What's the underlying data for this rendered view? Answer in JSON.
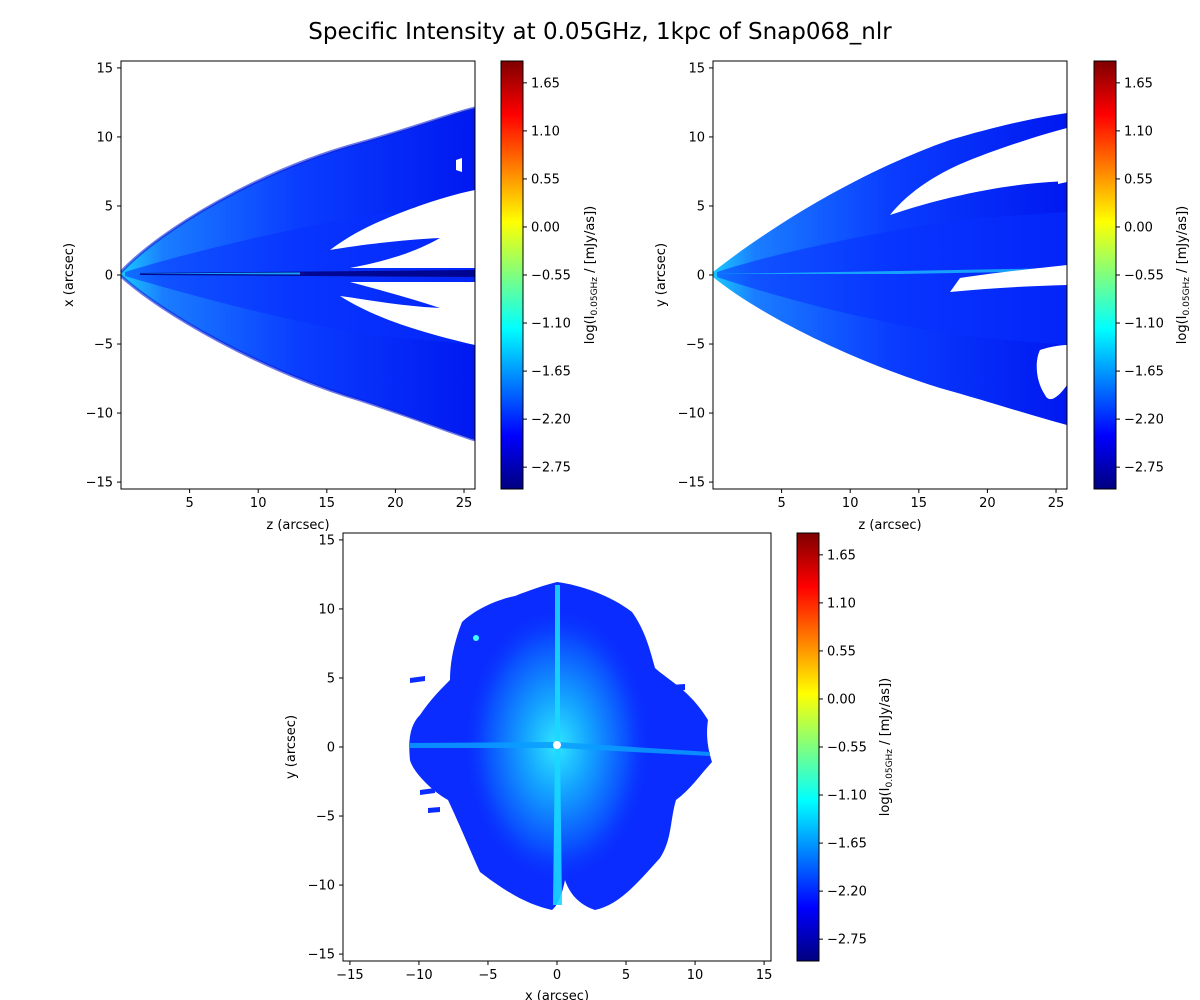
{
  "title": "Specific Intensity at 0.05GHz, 1kpc of Snap068_nlr",
  "colormap": "jet",
  "colormap_stops": [
    "#00007f",
    "#0000ff",
    "#007fff",
    "#00ffff",
    "#7fff7f",
    "#ffff00",
    "#ff7f00",
    "#ff0000",
    "#7f0000"
  ],
  "chart_data": [
    {
      "type": "heatmap",
      "panel": "top-left",
      "xlabel": "z (arcsec)",
      "ylabel": "x (arcsec)",
      "xlim": [
        0,
        25.8
      ],
      "ylim": [
        -15.5,
        15.5
      ],
      "xticks": [
        5,
        10,
        15,
        20,
        25
      ],
      "yticks": [
        -15,
        -10,
        -5,
        0,
        5,
        10,
        15
      ],
      "colorbar": {
        "label_prefix": "log(I",
        "label_sub": "0.05GHz",
        "label_suffix": " / [mJy/as])",
        "range": [
          -3.0,
          1.9
        ],
        "ticks": [
          "-2.75",
          "-2.20",
          "-1.65",
          "-1.10",
          "-0.55",
          "0.00",
          "0.55",
          "1.10",
          "1.65"
        ]
      }
    },
    {
      "type": "heatmap",
      "panel": "top-right",
      "xlabel": "z (arcsec)",
      "ylabel": "y (arcsec)",
      "xlim": [
        0,
        25.8
      ],
      "ylim": [
        -15.5,
        15.5
      ],
      "xticks": [
        5,
        10,
        15,
        20,
        25
      ],
      "yticks": [
        -15,
        -10,
        -5,
        0,
        5,
        10,
        15
      ],
      "colorbar": {
        "label_prefix": "log(I",
        "label_sub": "0.05GHz",
        "label_suffix": " / [mJy/as])",
        "range": [
          -3.0,
          1.9
        ],
        "ticks": [
          "-2.75",
          "-2.20",
          "-1.65",
          "-1.10",
          "-0.55",
          "0.00",
          "0.55",
          "1.10",
          "1.65"
        ]
      }
    },
    {
      "type": "heatmap",
      "panel": "bottom",
      "xlabel": "x (arcsec)",
      "ylabel": "y (arcsec)",
      "xlim": [
        -15.5,
        15.5
      ],
      "ylim": [
        -15.5,
        15.5
      ],
      "xticks": [
        -15,
        -10,
        -5,
        0,
        5,
        10,
        15
      ],
      "yticks": [
        -15,
        -10,
        -5,
        0,
        5,
        10,
        15
      ],
      "colorbar": {
        "label_prefix": "log(I",
        "label_sub": "0.05GHz",
        "label_suffix": " / [mJy/as])",
        "range": [
          -3.0,
          1.9
        ],
        "ticks": [
          "-2.75",
          "-2.20",
          "-1.65",
          "-1.10",
          "-0.55",
          "0.00",
          "0.55",
          "1.10",
          "1.65"
        ]
      }
    }
  ]
}
